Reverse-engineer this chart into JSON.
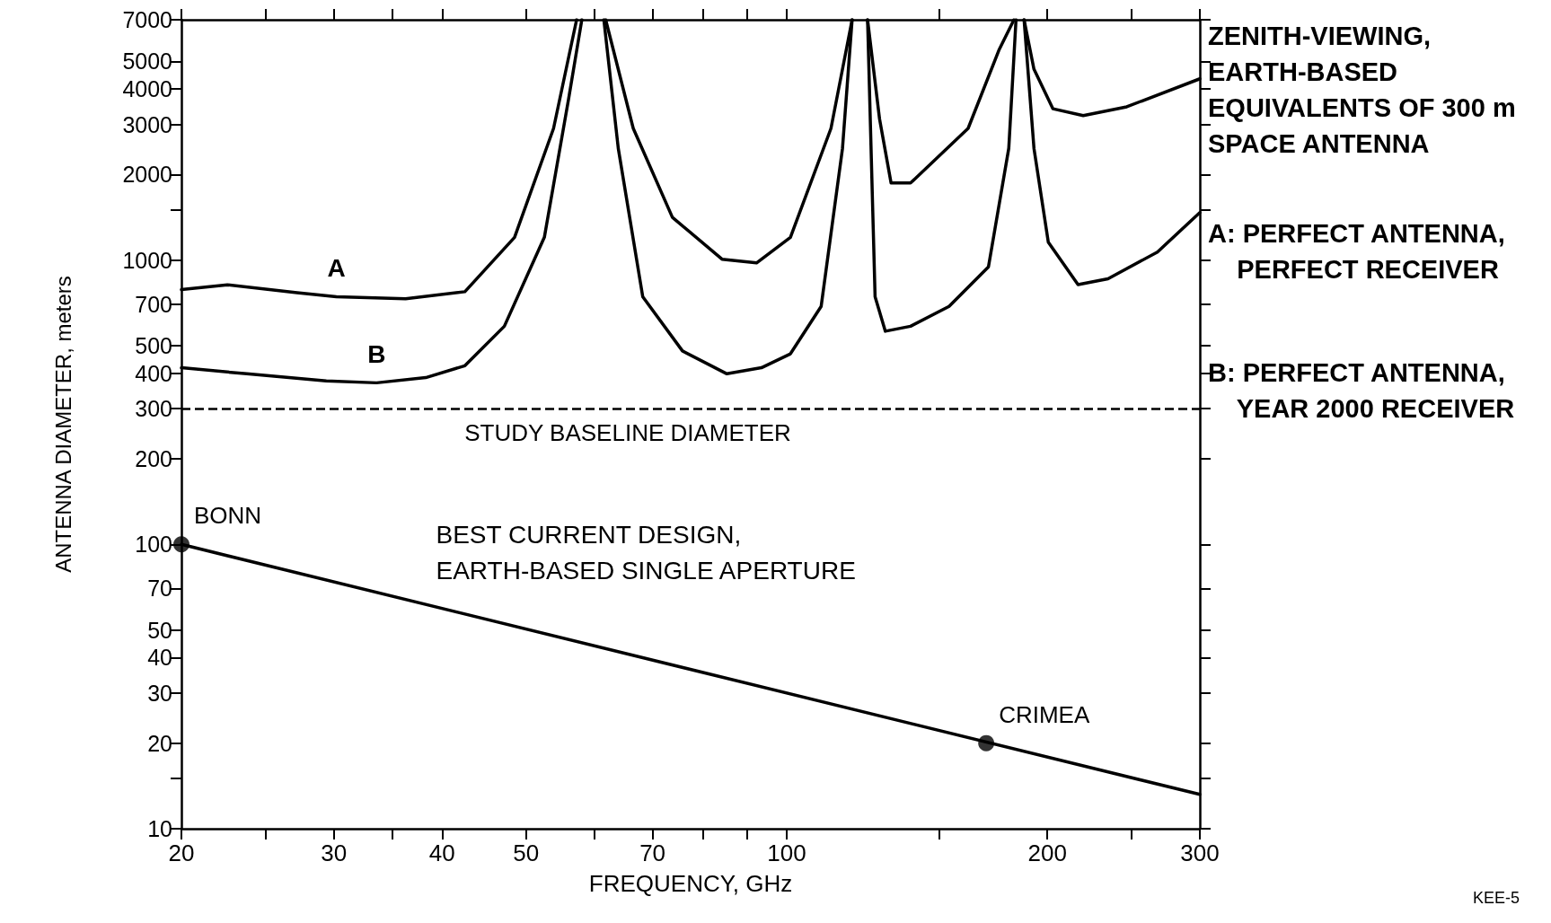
{
  "chart_data": {
    "type": "line",
    "xlabel": "FREQUENCY, GHz",
    "ylabel": "ANTENNA DIAMETER, meters",
    "log": "xy",
    "grid": false,
    "legend": false,
    "line_style": "solid",
    "marker": "none",
    "xlim": [
      20,
      300
    ],
    "xticks": [
      20,
      {
        "value": 25,
        "label": null
      },
      30,
      {
        "value": 35,
        "label": null
      },
      40,
      50,
      {
        "value": 60,
        "label": null
      },
      70,
      {
        "value": 80,
        "label": null
      },
      {
        "value": 90,
        "label": null
      },
      100,
      {
        "value": 150,
        "label": null
      },
      200,
      {
        "value": 250,
        "label": null
      },
      300
    ],
    "ylim": [
      10,
      7000
    ],
    "yticks": [
      10,
      {
        "value": 15,
        "label": null
      },
      20,
      30,
      40,
      50,
      70,
      100,
      200,
      300,
      400,
      500,
      700,
      1000,
      {
        "value": 1500,
        "label": null
      },
      2000,
      3000,
      4000,
      5000,
      7000
    ],
    "series": [
      {
        "name": "A",
        "color": "#000000",
        "x": [
          20,
          22.6,
          27.2,
          30.2,
          36.3,
          42.5,
          48.5,
          53.8,
          57.2,
          59.5,
          61.8,
          66.5,
          73.8,
          84.2,
          92.3,
          101,
          112.5,
          119,
          121.5,
          124,
          128,
          132,
          139,
          162,
          176,
          183,
          185.5,
          188,
          193,
          203,
          220,
          247,
          300
        ],
        "values": [
          787,
          818,
          767,
          743,
          731,
          774,
          1202,
          2904,
          7000,
          null,
          7000,
          2904,
          1413,
          1007,
          977,
          1202,
          2904,
          7000,
          null,
          7000,
          3140,
          1866,
          1866,
          2904,
          5508,
          7000,
          null,
          7000,
          4690,
          3404,
          3220,
          3460,
          4340
        ]
      },
      {
        "name": "B",
        "color": "#000000",
        "x": [
          20,
          23.8,
          29.4,
          33.6,
          38.3,
          42.5,
          47.2,
          52.5,
          56,
          58,
          59.8,
          61.5,
          63.9,
          68.2,
          75.8,
          85.3,
          93.5,
          101,
          109.6,
          116,
          119,
          121.5,
          124,
          126.5,
          130,
          139,
          154,
          171,
          180.5,
          184,
          186,
          188,
          193,
          200.5,
          217,
          235,
          268,
          300
        ],
        "values": [
          418,
          398,
          376,
          370,
          386,
          425,
          585,
          1202,
          3690,
          7000,
          null,
          7000,
          2472,
          743,
          479,
          398,
          418,
          468,
          687,
          2472,
          7000,
          null,
          7000,
          743,
          562,
          585,
          687,
          946,
          2472,
          7000,
          null,
          7000,
          2472,
          1156,
          819,
          859,
          1067,
          1469
        ]
      },
      {
        "name": "BEST CURRENT DESIGN,\nEARTH-BASED SINGLE APERTURE",
        "color": "#000000",
        "x": [
          20,
          300
        ],
        "values": [
          100,
          13.2
        ]
      },
      {
        "type": "scatter",
        "marker": "circle",
        "color": "#000000",
        "x": [
          20,
          170
        ],
        "values": [
          100,
          20
        ]
      }
    ],
    "ref_lines": [
      {
        "axis": "y",
        "value": 300,
        "label": "STUDY BASELINE DIAMETER",
        "line_style": "dashed",
        "color": "#000000"
      }
    ],
    "annotations": [
      {
        "text": "BONN",
        "x": 20,
        "y": 100
      },
      {
        "text": "CRIMEA",
        "x": 170,
        "y": 20
      },
      "ZENITH-VIEWING,\nEARTH-BASED\nEQUIVALENTS OF 300 m\nSPACE ANTENNA",
      "A: PERFECT ANTENNA,\n    PERFECT RECEIVER",
      "B: PERFECT ANTENNA,\n    YEAR 2000 RECEIVER",
      "KEE-5"
    ]
  }
}
